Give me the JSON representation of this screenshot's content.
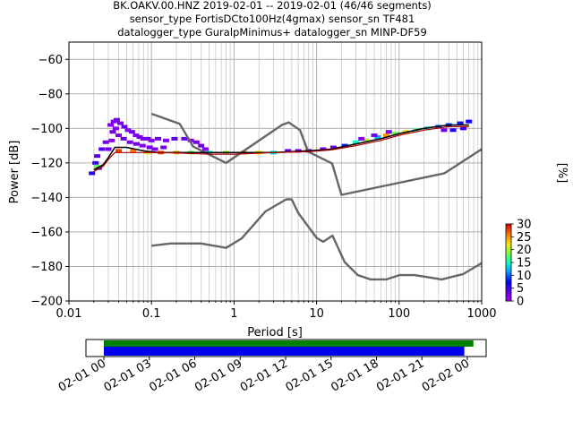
{
  "header": {
    "line1": "BK.OAKV.00.HNZ   2019-02-01 -- 2019-02-01  (46/46 segments)",
    "line2": "sensor_type FortisDCto100Hz(4gmax) sensor_sn TF481",
    "line3": "datalogger_type GuralpMinimus+ datalogger_sn MINP-DF59"
  },
  "chart_data": [
    {
      "type": "line",
      "xlabel": "Period [s]",
      "ylabel": "Power [dB]",
      "x_scale": "log",
      "xlim": [
        0.01,
        1000
      ],
      "ylim": [
        -200,
        -50
      ],
      "x_ticks": [
        0.01,
        0.1,
        1,
        10,
        100,
        1000
      ],
      "x_tick_labels": [
        "0.01",
        "0.1",
        "1",
        "10",
        "100",
        "1000"
      ],
      "y_ticks": [
        -200,
        -180,
        -160,
        -140,
        -120,
        -100,
        -80,
        -60
      ],
      "y_tick_labels": [
        "−200",
        "−180",
        "−160",
        "−140",
        "−120",
        "−100",
        "−80",
        "−60"
      ],
      "grid": true,
      "colorbar": {
        "label": "[%]",
        "range": [
          0,
          30
        ],
        "ticks": [
          0,
          5,
          10,
          15,
          20,
          25,
          30
        ],
        "tick_labels": [
          "0",
          "5",
          "10",
          "15",
          "20",
          "25",
          "30"
        ]
      },
      "series": [
        {
          "role": "noise-model-high",
          "color": "#666666",
          "points": [
            [
              0.1,
              -91.5
            ],
            [
              0.22,
              -97.4
            ],
            [
              0.32,
              -110.5
            ],
            [
              0.8,
              -120
            ],
            [
              3.8,
              -98
            ],
            [
              4.6,
              -96.5
            ],
            [
              6.3,
              -101
            ],
            [
              7.9,
              -113.5
            ],
            [
              15.4,
              -120.3
            ],
            [
              20,
              -138.5
            ],
            [
              354.8,
              -126
            ],
            [
              1000,
              -112
            ]
          ]
        },
        {
          "role": "noise-model-low",
          "color": "#666666",
          "points": [
            [
              0.1,
              -168
            ],
            [
              0.17,
              -166.7
            ],
            [
              0.4,
              -166.7
            ],
            [
              0.8,
              -169.2
            ],
            [
              1.24,
              -163.7
            ],
            [
              2.4,
              -148.1
            ],
            [
              4.3,
              -141.1
            ],
            [
              5,
              -141.1
            ],
            [
              6,
              -149
            ],
            [
              10,
              -163.4
            ],
            [
              12,
              -165.7
            ],
            [
              15.6,
              -162.1
            ],
            [
              21.9,
              -177.5
            ],
            [
              31.6,
              -185
            ],
            [
              45,
              -187.5
            ],
            [
              70,
              -187.5
            ],
            [
              101,
              -185
            ],
            [
              154,
              -185
            ],
            [
              328,
              -187.5
            ],
            [
              600,
              -184.4
            ],
            [
              1000,
              -178
            ]
          ]
        },
        {
          "role": "mode-line",
          "color": "#000000",
          "points": [
            [
              0.02,
              -124
            ],
            [
              0.026,
              -121
            ],
            [
              0.03,
              -117
            ],
            [
              0.036,
              -111
            ],
            [
              0.05,
              -111
            ],
            [
              0.08,
              -113
            ],
            [
              0.12,
              -114
            ],
            [
              0.2,
              -114
            ],
            [
              0.4,
              -114
            ],
            [
              1,
              -114
            ],
            [
              3,
              -114
            ],
            [
              8,
              -113
            ],
            [
              15,
              -112
            ],
            [
              30,
              -109
            ],
            [
              60,
              -106
            ],
            [
              100,
              -103
            ],
            [
              200,
              -100
            ],
            [
              400,
              -98
            ],
            [
              700,
              -98
            ]
          ]
        },
        {
          "role": "min-line",
          "color": "#b00000",
          "points": [
            [
              0.02,
              -125
            ],
            [
              0.026,
              -122
            ],
            [
              0.03,
              -118
            ],
            [
              0.036,
              -114
            ],
            [
              0.06,
              -114
            ],
            [
              0.15,
              -114
            ],
            [
              0.5,
              -115
            ],
            [
              1,
              -115
            ],
            [
              3,
              -114
            ],
            [
              8,
              -113.5
            ],
            [
              15,
              -112.5
            ],
            [
              30,
              -110
            ],
            [
              60,
              -107
            ],
            [
              100,
              -104
            ],
            [
              200,
              -101
            ],
            [
              400,
              -99
            ],
            [
              700,
              -99
            ]
          ]
        }
      ],
      "density_cells": [
        {
          "x": 0.032,
          "y": -98,
          "pct": 2
        },
        {
          "x": 0.035,
          "y": -96,
          "pct": 2
        },
        {
          "x": 0.038,
          "y": -95,
          "pct": 3
        },
        {
          "x": 0.042,
          "y": -97,
          "pct": 2
        },
        {
          "x": 0.047,
          "y": -99,
          "pct": 3
        },
        {
          "x": 0.052,
          "y": -101,
          "pct": 2
        },
        {
          "x": 0.058,
          "y": -102,
          "pct": 3
        },
        {
          "x": 0.065,
          "y": -104,
          "pct": 2
        },
        {
          "x": 0.072,
          "y": -105,
          "pct": 3
        },
        {
          "x": 0.08,
          "y": -106,
          "pct": 2
        },
        {
          "x": 0.09,
          "y": -106,
          "pct": 3
        },
        {
          "x": 0.1,
          "y": -107,
          "pct": 2
        },
        {
          "x": 0.12,
          "y": -106,
          "pct": 3
        },
        {
          "x": 0.15,
          "y": -107,
          "pct": 2
        },
        {
          "x": 0.19,
          "y": -106,
          "pct": 4
        },
        {
          "x": 0.25,
          "y": -106,
          "pct": 3
        },
        {
          "x": 0.3,
          "y": -107,
          "pct": 2
        },
        {
          "x": 0.35,
          "y": -108,
          "pct": 3
        },
        {
          "x": 0.034,
          "y": -102,
          "pct": 3
        },
        {
          "x": 0.04,
          "y": -104,
          "pct": 2
        },
        {
          "x": 0.046,
          "y": -106,
          "pct": 3
        },
        {
          "x": 0.055,
          "y": -108,
          "pct": 2
        },
        {
          "x": 0.066,
          "y": -109,
          "pct": 3
        },
        {
          "x": 0.078,
          "y": -110,
          "pct": 2
        },
        {
          "x": 0.095,
          "y": -111,
          "pct": 3
        },
        {
          "x": 0.11,
          "y": -112,
          "pct": 2
        },
        {
          "x": 0.14,
          "y": -111,
          "pct": 3
        },
        {
          "x": 0.028,
          "y": -108,
          "pct": 3
        },
        {
          "x": 0.025,
          "y": -112,
          "pct": 4
        },
        {
          "x": 0.022,
          "y": -116,
          "pct": 4
        },
        {
          "x": 0.021,
          "y": -120,
          "pct": 5
        },
        {
          "x": 0.023,
          "y": -123,
          "pct": 4
        },
        {
          "x": 0.019,
          "y": -126,
          "pct": 6
        },
        {
          "x": 0.03,
          "y": -112,
          "pct": 3
        },
        {
          "x": 0.033,
          "y": -107,
          "pct": 2
        },
        {
          "x": 0.037,
          "y": -100,
          "pct": 2
        },
        {
          "x": 0.04,
          "y": -113,
          "pct": 28
        },
        {
          "x": 0.06,
          "y": -113,
          "pct": 26
        },
        {
          "x": 0.09,
          "y": -114,
          "pct": 22
        },
        {
          "x": 0.13,
          "y": -114,
          "pct": 27
        },
        {
          "x": 0.2,
          "y": -114,
          "pct": 24
        },
        {
          "x": 0.3,
          "y": -114,
          "pct": 18
        },
        {
          "x": 0.5,
          "y": -114,
          "pct": 15
        },
        {
          "x": 0.8,
          "y": -114,
          "pct": 20
        },
        {
          "x": 1.3,
          "y": -114,
          "pct": 25
        },
        {
          "x": 2,
          "y": -114,
          "pct": 22
        },
        {
          "x": 3,
          "y": -114,
          "pct": 14
        },
        {
          "x": 4.5,
          "y": -113,
          "pct": 3
        },
        {
          "x": 6,
          "y": -113,
          "pct": 2
        },
        {
          "x": 8,
          "y": -113,
          "pct": 3
        },
        {
          "x": 12,
          "y": -112,
          "pct": 2
        },
        {
          "x": 16,
          "y": -111,
          "pct": 3
        },
        {
          "x": 22,
          "y": -110,
          "pct": 8
        },
        {
          "x": 30,
          "y": -108,
          "pct": 15
        },
        {
          "x": 40,
          "y": -107,
          "pct": 20
        },
        {
          "x": 55,
          "y": -105,
          "pct": 12
        },
        {
          "x": 70,
          "y": -104,
          "pct": 25
        },
        {
          "x": 90,
          "y": -103,
          "pct": 18
        },
        {
          "x": 120,
          "y": -102,
          "pct": 22
        },
        {
          "x": 160,
          "y": -101,
          "pct": 16
        },
        {
          "x": 220,
          "y": -100,
          "pct": 14
        },
        {
          "x": 300,
          "y": -99,
          "pct": 10
        },
        {
          "x": 400,
          "y": -98,
          "pct": 9
        },
        {
          "x": 550,
          "y": -97,
          "pct": 8
        },
        {
          "x": 700,
          "y": -96,
          "pct": 7
        },
        {
          "x": 600,
          "y": -100,
          "pct": 5
        },
        {
          "x": 450,
          "y": -101,
          "pct": 6
        },
        {
          "x": 350,
          "y": -101,
          "pct": 3
        },
        {
          "x": 35,
          "y": -106,
          "pct": 2
        },
        {
          "x": 50,
          "y": -104,
          "pct": 3
        },
        {
          "x": 75,
          "y": -102,
          "pct": 2
        },
        {
          "x": 0.022,
          "y": -122,
          "pct": 18
        },
        {
          "x": 0.45,
          "y": -112,
          "pct": 2
        },
        {
          "x": 0.4,
          "y": -110,
          "pct": 3
        }
      ]
    },
    {
      "type": "bar",
      "role": "data-availability",
      "x_ticks": [
        "02-01 00",
        "02-01 03",
        "02-01 06",
        "02-01 09",
        "02-01 12",
        "02-01 15",
        "02-01 18",
        "02-01 21",
        "02-02 00"
      ],
      "bars": [
        {
          "color": "#008000",
          "start_hour": 0,
          "end_hour": 24.4
        },
        {
          "color": "#0000ee",
          "start_hour": 0,
          "end_hour": 23.8
        }
      ]
    }
  ]
}
